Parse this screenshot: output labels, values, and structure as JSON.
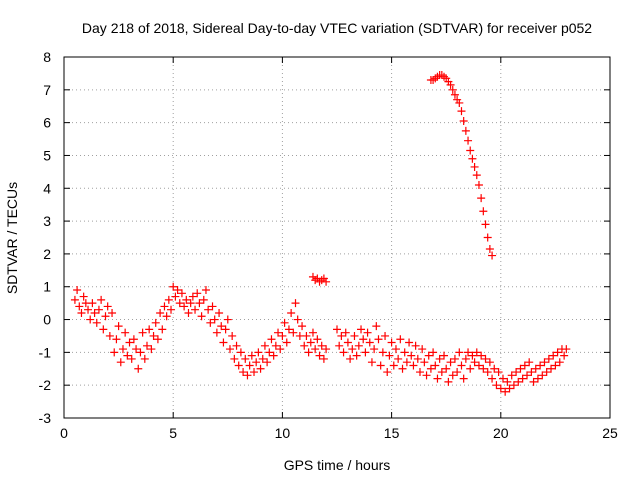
{
  "chart_data": {
    "type": "scatter",
    "title": "Day 218 of 2018, Sidereal Day-to-day VTEC variation (SDTVAR) for receiver p052",
    "xlabel": "GPS time / hours",
    "ylabel": "SDTVAR / TECUs",
    "xlim": [
      0,
      25
    ],
    "ylim": [
      -3,
      8
    ],
    "xticks": [
      "0",
      "5",
      "10",
      "15",
      "20",
      "25"
    ],
    "yticks": [
      "-3",
      "-2",
      "-1",
      "0",
      "1",
      "2",
      "3",
      "4",
      "5",
      "6",
      "7",
      "8"
    ],
    "grid": true,
    "marker": "plus",
    "color": "#ff0000",
    "series": [
      {
        "name": "SDTVAR",
        "points": [
          [
            0.5,
            0.6
          ],
          [
            0.6,
            0.9
          ],
          [
            0.7,
            0.4
          ],
          [
            0.8,
            0.2
          ],
          [
            0.9,
            0.7
          ],
          [
            1.0,
            0.5
          ],
          [
            1.1,
            0.3
          ],
          [
            1.2,
            0.0
          ],
          [
            1.3,
            0.5
          ],
          [
            1.4,
            0.2
          ],
          [
            1.5,
            -0.1
          ],
          [
            1.6,
            0.3
          ],
          [
            1.7,
            0.6
          ],
          [
            1.8,
            -0.3
          ],
          [
            1.9,
            0.1
          ],
          [
            2.0,
            0.4
          ],
          [
            2.1,
            -0.5
          ],
          [
            2.2,
            0.2
          ],
          [
            2.3,
            -1.0
          ],
          [
            2.4,
            -0.6
          ],
          [
            2.5,
            -0.2
          ],
          [
            2.6,
            -1.3
          ],
          [
            2.7,
            -0.9
          ],
          [
            2.8,
            -0.4
          ],
          [
            2.9,
            -1.1
          ],
          [
            3.0,
            -0.7
          ],
          [
            3.1,
            -1.2
          ],
          [
            3.2,
            -0.6
          ],
          [
            3.3,
            -0.9
          ],
          [
            3.4,
            -1.5
          ],
          [
            3.5,
            -1.0
          ],
          [
            3.6,
            -0.4
          ],
          [
            3.7,
            -1.2
          ],
          [
            3.8,
            -0.8
          ],
          [
            3.9,
            -0.3
          ],
          [
            4.0,
            -0.9
          ],
          [
            4.1,
            -0.5
          ],
          [
            4.2,
            -0.1
          ],
          [
            4.3,
            -0.6
          ],
          [
            4.4,
            0.2
          ],
          [
            4.5,
            -0.3
          ],
          [
            4.6,
            0.4
          ],
          [
            4.7,
            0.1
          ],
          [
            4.8,
            0.6
          ],
          [
            4.9,
            0.3
          ],
          [
            5.0,
            1.0
          ],
          [
            5.1,
            0.7
          ],
          [
            5.2,
            0.9
          ],
          [
            5.3,
            0.5
          ],
          [
            5.4,
            0.8
          ],
          [
            5.5,
            0.4
          ],
          [
            5.6,
            0.6
          ],
          [
            5.7,
            0.2
          ],
          [
            5.8,
            0.5
          ],
          [
            5.9,
            0.7
          ],
          [
            6.0,
            0.3
          ],
          [
            6.1,
            0.8
          ],
          [
            6.2,
            0.5
          ],
          [
            6.3,
            0.1
          ],
          [
            6.4,
            0.6
          ],
          [
            6.5,
            0.9
          ],
          [
            6.6,
            0.3
          ],
          [
            6.7,
            -0.1
          ],
          [
            6.8,
            0.4
          ],
          [
            6.9,
            0.0
          ],
          [
            7.0,
            -0.4
          ],
          [
            7.1,
            0.2
          ],
          [
            7.2,
            -0.2
          ],
          [
            7.3,
            -0.7
          ],
          [
            7.4,
            -0.3
          ],
          [
            7.5,
            0.0
          ],
          [
            7.6,
            -0.9
          ],
          [
            7.7,
            -0.5
          ],
          [
            7.8,
            -1.2
          ],
          [
            7.9,
            -0.8
          ],
          [
            8.0,
            -1.4
          ],
          [
            8.1,
            -1.0
          ],
          [
            8.2,
            -1.6
          ],
          [
            8.3,
            -1.2
          ],
          [
            8.4,
            -1.7
          ],
          [
            8.5,
            -1.4
          ],
          [
            8.6,
            -1.1
          ],
          [
            8.7,
            -1.6
          ],
          [
            8.8,
            -1.3
          ],
          [
            8.9,
            -1.0
          ],
          [
            9.0,
            -1.5
          ],
          [
            9.1,
            -1.2
          ],
          [
            9.2,
            -0.8
          ],
          [
            9.3,
            -1.3
          ],
          [
            9.4,
            -1.0
          ],
          [
            9.5,
            -0.6
          ],
          [
            9.6,
            -1.1
          ],
          [
            9.7,
            -0.8
          ],
          [
            9.8,
            -0.4
          ],
          [
            9.9,
            -0.9
          ],
          [
            10.0,
            -0.5
          ],
          [
            10.1,
            -0.1
          ],
          [
            10.2,
            -0.7
          ],
          [
            10.3,
            -0.3
          ],
          [
            10.4,
            0.2
          ],
          [
            10.5,
            -0.4
          ],
          [
            10.6,
            0.5
          ],
          [
            10.7,
            0.0
          ],
          [
            10.8,
            -0.5
          ],
          [
            10.9,
            -0.2
          ],
          [
            11.0,
            -0.8
          ],
          [
            11.1,
            -0.5
          ],
          [
            11.2,
            -1.0
          ],
          [
            11.3,
            -0.7
          ],
          [
            11.4,
            -0.4
          ],
          [
            11.5,
            -0.9
          ],
          [
            11.6,
            -0.6
          ],
          [
            11.7,
            -1.1
          ],
          [
            11.8,
            -0.8
          ],
          [
            11.9,
            -1.2
          ],
          [
            12.0,
            -0.9
          ],
          [
            11.4,
            1.3
          ],
          [
            11.5,
            1.2
          ],
          [
            11.6,
            1.25
          ],
          [
            11.7,
            1.15
          ],
          [
            11.8,
            1.2
          ],
          [
            11.9,
            1.25
          ],
          [
            12.0,
            1.15
          ],
          [
            12.5,
            -0.3
          ],
          [
            12.6,
            -0.8
          ],
          [
            12.7,
            -0.5
          ],
          [
            12.8,
            -1.0
          ],
          [
            12.9,
            -0.4
          ],
          [
            13.0,
            -0.7
          ],
          [
            13.1,
            -1.2
          ],
          [
            13.2,
            -0.9
          ],
          [
            13.3,
            -0.5
          ],
          [
            13.4,
            -1.1
          ],
          [
            13.5,
            -0.8
          ],
          [
            13.6,
            -0.3
          ],
          [
            13.7,
            -0.6
          ],
          [
            13.8,
            -1.0
          ],
          [
            13.9,
            -0.4
          ],
          [
            14.0,
            -0.7
          ],
          [
            14.1,
            -1.3
          ],
          [
            14.2,
            -0.9
          ],
          [
            14.3,
            -0.2
          ],
          [
            14.4,
            -0.6
          ],
          [
            14.5,
            -1.4
          ],
          [
            14.6,
            -1.0
          ],
          [
            14.7,
            -0.5
          ],
          [
            14.8,
            -1.6
          ],
          [
            14.9,
            -1.1
          ],
          [
            15.0,
            -0.7
          ],
          [
            15.1,
            -1.4
          ],
          [
            15.2,
            -0.9
          ],
          [
            15.3,
            -1.2
          ],
          [
            15.4,
            -0.6
          ],
          [
            15.5,
            -1.5
          ],
          [
            15.6,
            -1.0
          ],
          [
            15.7,
            -1.3
          ],
          [
            15.8,
            -0.7
          ],
          [
            15.9,
            -1.1
          ],
          [
            16.0,
            -1.4
          ],
          [
            16.1,
            -0.8
          ],
          [
            16.2,
            -1.2
          ],
          [
            16.3,
            -1.6
          ],
          [
            16.4,
            -0.9
          ],
          [
            16.5,
            -1.3
          ],
          [
            16.6,
            -1.7
          ],
          [
            16.7,
            -1.1
          ],
          [
            16.8,
            -1.5
          ],
          [
            16.9,
            -1.0
          ],
          [
            17.0,
            -1.4
          ],
          [
            17.1,
            -1.8
          ],
          [
            17.2,
            -1.2
          ],
          [
            17.3,
            -1.6
          ],
          [
            17.4,
            -1.1
          ],
          [
            17.5,
            -1.5
          ],
          [
            17.6,
            -1.9
          ],
          [
            17.7,
            -1.3
          ],
          [
            17.8,
            -1.7
          ],
          [
            17.9,
            -1.2
          ],
          [
            18.0,
            -1.6
          ],
          [
            18.1,
            -1.0
          ],
          [
            18.2,
            -1.4
          ],
          [
            18.3,
            -1.8
          ],
          [
            18.4,
            -1.2
          ],
          [
            18.5,
            -1.0
          ],
          [
            18.6,
            -1.5
          ],
          [
            18.7,
            -1.1
          ],
          [
            18.8,
            -1.3
          ],
          [
            18.9,
            -1.0
          ],
          [
            19.0,
            -1.4
          ],
          [
            19.1,
            -1.1
          ],
          [
            19.2,
            -1.5
          ],
          [
            19.3,
            -1.2
          ],
          [
            19.4,
            -1.6
          ],
          [
            19.5,
            -1.3
          ],
          [
            19.6,
            -1.8
          ],
          [
            19.7,
            -1.5
          ],
          [
            19.8,
            -2.0
          ],
          [
            19.9,
            -1.6
          ],
          [
            20.0,
            -2.1
          ],
          [
            20.1,
            -1.8
          ],
          [
            20.2,
            -2.2
          ],
          [
            20.3,
            -1.9
          ],
          [
            20.4,
            -2.1
          ],
          [
            20.5,
            -1.7
          ],
          [
            20.6,
            -2.0
          ],
          [
            20.7,
            -1.6
          ],
          [
            20.8,
            -1.9
          ],
          [
            20.9,
            -1.5
          ],
          [
            21.0,
            -1.8
          ],
          [
            21.1,
            -1.4
          ],
          [
            21.2,
            -1.7
          ],
          [
            21.3,
            -1.3
          ],
          [
            21.4,
            -1.6
          ],
          [
            21.5,
            -1.9
          ],
          [
            21.6,
            -1.5
          ],
          [
            21.7,
            -1.8
          ],
          [
            21.8,
            -1.4
          ],
          [
            21.9,
            -1.7
          ],
          [
            22.0,
            -1.3
          ],
          [
            22.1,
            -1.6
          ],
          [
            22.2,
            -1.2
          ],
          [
            22.3,
            -1.5
          ],
          [
            22.4,
            -1.1
          ],
          [
            22.5,
            -1.4
          ],
          [
            22.6,
            -1.0
          ],
          [
            22.7,
            -1.3
          ],
          [
            22.8,
            -0.9
          ],
          [
            22.9,
            -1.1
          ],
          [
            23.0,
            -0.9
          ],
          [
            16.8,
            7.3
          ],
          [
            16.9,
            7.3
          ],
          [
            17.0,
            7.35
          ],
          [
            17.1,
            7.4
          ],
          [
            17.2,
            7.45
          ],
          [
            17.3,
            7.45
          ],
          [
            17.4,
            7.4
          ],
          [
            17.5,
            7.35
          ],
          [
            17.6,
            7.25
          ],
          [
            17.7,
            7.15
          ],
          [
            17.8,
            7.0
          ],
          [
            17.9,
            6.85
          ],
          [
            18.0,
            6.7
          ],
          [
            18.1,
            6.6
          ],
          [
            18.2,
            6.35
          ],
          [
            18.3,
            6.05
          ],
          [
            18.4,
            5.75
          ],
          [
            18.5,
            5.45
          ],
          [
            18.6,
            5.15
          ],
          [
            18.7,
            4.9
          ],
          [
            18.8,
            4.65
          ],
          [
            18.9,
            4.4
          ],
          [
            19.0,
            4.1
          ],
          [
            19.1,
            3.7
          ],
          [
            19.2,
            3.3
          ],
          [
            19.3,
            2.9
          ],
          [
            19.4,
            2.5
          ],
          [
            19.5,
            2.15
          ],
          [
            19.6,
            1.95
          ]
        ]
      }
    ]
  }
}
